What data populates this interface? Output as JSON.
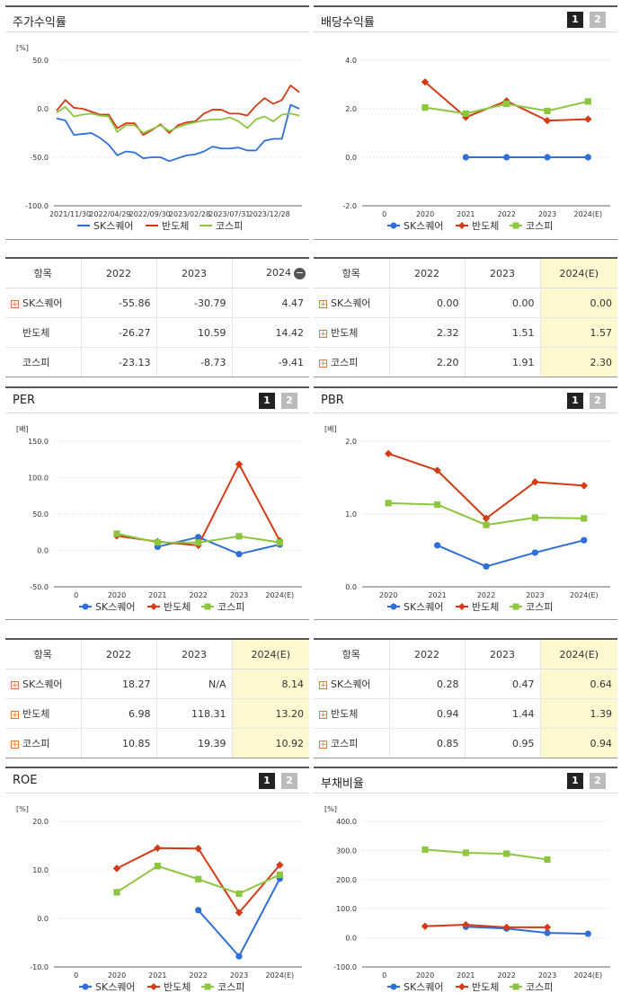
{
  "colors": {
    "sk": "#2f6fd8",
    "semi": "#d33b16",
    "kospi": "#8cc63f"
  },
  "legend": [
    "SK스퀘어",
    "반도체",
    "코스피"
  ],
  "pager": [
    "1",
    "2"
  ],
  "panels": {
    "stock": {
      "title": "주가수익률"
    },
    "div": {
      "title": "배당수익률"
    },
    "per": {
      "title": "PER"
    },
    "pbr": {
      "title": "PBR"
    },
    "roe": {
      "title": "ROE"
    },
    "debt": {
      "title": "부채비율"
    }
  },
  "tables": {
    "stock": {
      "headers": [
        "항목",
        "2022",
        "2023",
        "2024"
      ],
      "rows": [
        {
          "name": "SK스퀘어",
          "plus": true,
          "values": [
            "-55.86",
            "-30.79",
            "4.47"
          ]
        },
        {
          "name": "반도체",
          "plus": false,
          "values": [
            "-26.27",
            "10.59",
            "14.42"
          ]
        },
        {
          "name": "코스피",
          "plus": false,
          "values": [
            "-23.13",
            "-8.73",
            "-9.41"
          ]
        }
      ]
    },
    "div": {
      "headers": [
        "항목",
        "2022",
        "2023",
        "2024(E)"
      ],
      "rows": [
        {
          "name": "SK스퀘어",
          "plus": true,
          "values": [
            "0.00",
            "0.00",
            "0.00"
          ]
        },
        {
          "name": "반도체",
          "plus": true,
          "values": [
            "2.32",
            "1.51",
            "1.57"
          ]
        },
        {
          "name": "코스피",
          "plus": true,
          "values": [
            "2.20",
            "1.91",
            "2.30"
          ]
        }
      ]
    },
    "per": {
      "headers": [
        "항목",
        "2022",
        "2023",
        "2024(E)"
      ],
      "rows": [
        {
          "name": "SK스퀘어",
          "plus": true,
          "values": [
            "18.27",
            "N/A",
            "8.14"
          ]
        },
        {
          "name": "반도체",
          "plus": true,
          "values": [
            "6.98",
            "118.31",
            "13.20"
          ]
        },
        {
          "name": "코스피",
          "plus": true,
          "values": [
            "10.85",
            "19.39",
            "10.92"
          ]
        }
      ]
    },
    "pbr": {
      "headers": [
        "항목",
        "2022",
        "2023",
        "2024(E)"
      ],
      "rows": [
        {
          "name": "SK스퀘어",
          "plus": true,
          "values": [
            "0.28",
            "0.47",
            "0.64"
          ]
        },
        {
          "name": "반도체",
          "plus": true,
          "values": [
            "0.94",
            "1.44",
            "1.39"
          ]
        },
        {
          "name": "코스피",
          "plus": true,
          "values": [
            "0.85",
            "0.95",
            "0.94"
          ]
        }
      ]
    }
  },
  "chart_data": [
    {
      "id": "stock",
      "type": "line",
      "unit": "[%]",
      "yticks": [
        "50.0",
        "0.0",
        "-50.0",
        "-100.0"
      ],
      "ylim": [
        -100,
        50
      ],
      "xticks": [
        "2021/11/30",
        "2022/04/29",
        "2022/09/30",
        "2023/02/28",
        "2023/07/31",
        "2023/12/28"
      ],
      "series": [
        {
          "name": "SK스퀘어",
          "values": [
            -10,
            -12,
            -27,
            -26,
            -25,
            -30,
            -37,
            -48,
            -44,
            -45,
            -51,
            -50,
            -50,
            -54,
            -51,
            -48,
            -47,
            -44,
            -39,
            -41,
            -41,
            -40,
            -43,
            -43,
            -33,
            -31,
            -31,
            4,
            0
          ]
        },
        {
          "name": "반도체",
          "values": [
            -2,
            9,
            1,
            0,
            -3,
            -6,
            -6,
            -20,
            -15,
            -15,
            -27,
            -22,
            -16,
            -25,
            -17,
            -14,
            -13,
            -5,
            -1,
            -1,
            -5,
            -5,
            -7,
            3,
            11,
            5,
            9,
            24,
            17
          ]
        },
        {
          "name": "코스피",
          "values": [
            -4,
            2,
            -8,
            -6,
            -5,
            -7,
            -8,
            -24,
            -17,
            -17,
            -25,
            -21,
            -17,
            -23,
            -19,
            -16,
            -14,
            -12,
            -11,
            -11,
            -9,
            -13,
            -20,
            -11,
            -8,
            -13,
            -6,
            -5,
            -7
          ]
        }
      ]
    },
    {
      "id": "div",
      "type": "line",
      "unit": "",
      "yticks": [
        "4.0",
        "2.0",
        "0.0",
        "-2.0"
      ],
      "ylim": [
        -2,
        4
      ],
      "categories": [
        "0",
        "2020",
        "2021",
        "2022",
        "2023",
        "2024(E)"
      ],
      "series": [
        {
          "name": "SK스퀘어",
          "values": [
            null,
            null,
            0.0,
            0.0,
            0.0,
            0.0
          ]
        },
        {
          "name": "반도체",
          "values": [
            null,
            3.1,
            1.65,
            2.32,
            1.51,
            1.57
          ]
        },
        {
          "name": "코스피",
          "values": [
            null,
            2.05,
            1.8,
            2.2,
            1.91,
            2.3
          ]
        }
      ]
    },
    {
      "id": "per",
      "type": "line",
      "unit": "[배]",
      "yticks": [
        "150.0",
        "100.0",
        "50.0",
        "0.0",
        "-50.0"
      ],
      "ylim": [
        -50,
        150
      ],
      "categories": [
        "0",
        "2020",
        "2021",
        "2022",
        "2023",
        "2024(E)"
      ],
      "series": [
        {
          "name": "SK스퀘어",
          "values": [
            null,
            null,
            5,
            18.27,
            -5,
            8.14
          ]
        },
        {
          "name": "반도체",
          "values": [
            null,
            20,
            12,
            6.98,
            118.31,
            13.2
          ]
        },
        {
          "name": "코스피",
          "values": [
            null,
            23,
            11,
            10.85,
            19.39,
            10.92
          ]
        }
      ]
    },
    {
      "id": "pbr",
      "type": "line",
      "unit": "[배]",
      "yticks": [
        "2.0",
        "1.0",
        "0.0"
      ],
      "ylim": [
        0,
        2
      ],
      "categories": [
        "2020",
        "2021",
        "2022",
        "2023",
        "2024(E)"
      ],
      "series": [
        {
          "name": "SK스퀘어",
          "values": [
            null,
            0.57,
            0.28,
            0.47,
            0.64
          ]
        },
        {
          "name": "반도체",
          "values": [
            1.83,
            1.6,
            0.94,
            1.44,
            1.39
          ]
        },
        {
          "name": "코스피",
          "values": [
            1.15,
            1.13,
            0.85,
            0.95,
            0.94
          ]
        }
      ]
    },
    {
      "id": "roe",
      "type": "line",
      "unit": "[%]",
      "yticks": [
        "20.0",
        "10.0",
        "0.0",
        "-10.0"
      ],
      "ylim": [
        -10,
        20
      ],
      "categories": [
        "0",
        "2020",
        "2021",
        "2022",
        "2023",
        "2024(E)"
      ],
      "series": [
        {
          "name": "SK스퀘어",
          "values": [
            null,
            null,
            null,
            1.7,
            -7.8,
            8.2
          ]
        },
        {
          "name": "반도체",
          "values": [
            null,
            10.3,
            14.5,
            14.4,
            1.2,
            11.0
          ]
        },
        {
          "name": "코스피",
          "values": [
            null,
            5.4,
            10.8,
            8.1,
            5.1,
            9.0
          ]
        }
      ]
    },
    {
      "id": "debt",
      "type": "line",
      "unit": "[%]",
      "yticks": [
        "400.0",
        "300.0",
        "200.0",
        "100.0",
        "0.0",
        "-100.0"
      ],
      "ylim": [
        -100,
        400
      ],
      "categories": [
        "0",
        "2020",
        "2021",
        "2022",
        "2023",
        "2024(E)"
      ],
      "series": [
        {
          "name": "SK스퀘어",
          "values": [
            null,
            null,
            38,
            32,
            17,
            14
          ]
        },
        {
          "name": "반도체",
          "values": [
            null,
            40,
            45,
            36,
            36,
            null
          ]
        },
        {
          "name": "코스피",
          "values": [
            null,
            303,
            292,
            289,
            269,
            null
          ]
        }
      ]
    }
  ]
}
